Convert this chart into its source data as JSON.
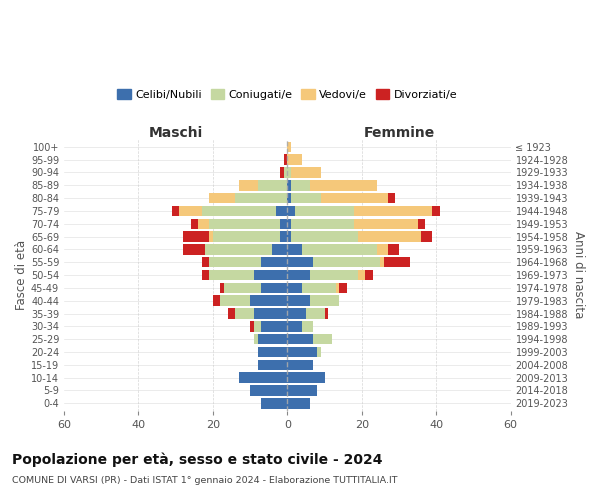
{
  "age_groups": [
    "0-4",
    "5-9",
    "10-14",
    "15-19",
    "20-24",
    "25-29",
    "30-34",
    "35-39",
    "40-44",
    "45-49",
    "50-54",
    "55-59",
    "60-64",
    "65-69",
    "70-74",
    "75-79",
    "80-84",
    "85-89",
    "90-94",
    "95-99",
    "100+"
  ],
  "birth_years": [
    "2019-2023",
    "2014-2018",
    "2009-2013",
    "2004-2008",
    "1999-2003",
    "1994-1998",
    "1989-1993",
    "1984-1988",
    "1979-1983",
    "1974-1978",
    "1969-1973",
    "1964-1968",
    "1959-1963",
    "1954-1958",
    "1949-1953",
    "1944-1948",
    "1939-1943",
    "1934-1938",
    "1929-1933",
    "1924-1928",
    "≤ 1923"
  ],
  "male": {
    "celibi": [
      7,
      10,
      13,
      8,
      8,
      8,
      7,
      9,
      10,
      7,
      9,
      7,
      4,
      2,
      2,
      3,
      0,
      0,
      0,
      0,
      0
    ],
    "coniugati": [
      0,
      0,
      0,
      0,
      0,
      1,
      2,
      5,
      8,
      10,
      12,
      14,
      18,
      18,
      19,
      20,
      14,
      8,
      1,
      0,
      0
    ],
    "vedovi": [
      0,
      0,
      0,
      0,
      0,
      0,
      0,
      0,
      0,
      0,
      0,
      0,
      0,
      1,
      3,
      6,
      7,
      5,
      0,
      0,
      0
    ],
    "divorziati": [
      0,
      0,
      0,
      0,
      0,
      0,
      1,
      2,
      2,
      1,
      2,
      2,
      6,
      7,
      2,
      2,
      0,
      0,
      1,
      1,
      0
    ]
  },
  "female": {
    "nubili": [
      6,
      8,
      10,
      7,
      8,
      7,
      4,
      5,
      6,
      4,
      6,
      7,
      4,
      1,
      1,
      2,
      1,
      1,
      0,
      0,
      0
    ],
    "coniugate": [
      0,
      0,
      0,
      0,
      1,
      5,
      3,
      5,
      8,
      9,
      13,
      18,
      20,
      18,
      17,
      16,
      8,
      5,
      1,
      0,
      0
    ],
    "vedove": [
      0,
      0,
      0,
      0,
      0,
      0,
      0,
      0,
      0,
      1,
      2,
      1,
      3,
      17,
      17,
      21,
      18,
      18,
      8,
      4,
      1
    ],
    "divorziate": [
      0,
      0,
      0,
      0,
      0,
      0,
      0,
      1,
      0,
      2,
      2,
      7,
      3,
      3,
      2,
      2,
      2,
      0,
      0,
      0,
      0
    ]
  },
  "colors": {
    "celibi": "#3d6fad",
    "coniugati": "#c5d8a1",
    "vedovi": "#f5c87a",
    "divorziati": "#cc2222"
  },
  "xlim": 60,
  "title": "Popolazione per età, sesso e stato civile - 2024",
  "subtitle": "COMUNE DI VARSI (PR) - Dati ISTAT 1° gennaio 2024 - Elaborazione TUTTITALIA.IT",
  "xlabel_left": "Maschi",
  "xlabel_right": "Femmine",
  "ylabel_left": "Fasce di età",
  "ylabel_right": "Anni di nascita",
  "legend_labels": [
    "Celibi/Nubili",
    "Coniugati/e",
    "Vedovi/e",
    "Divorziati/e"
  ],
  "background_color": "#ffffff",
  "grid_color": "#cccccc"
}
